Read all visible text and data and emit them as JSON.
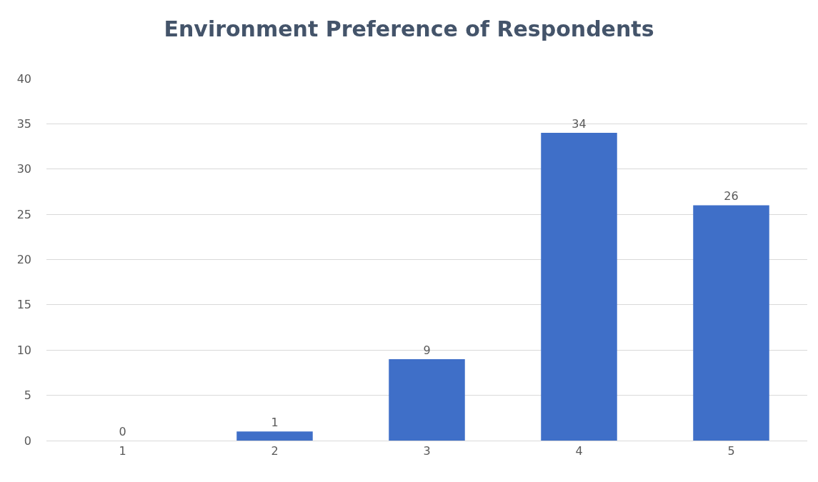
{
  "chart_data": {
    "type": "bar",
    "title": "Environment Preference of Respondents",
    "categories": [
      "1",
      "2",
      "3",
      "4",
      "5"
    ],
    "values": [
      0,
      1,
      9,
      34,
      26
    ],
    "color": "#3f6fc8",
    "ylim": [
      0,
      40
    ],
    "yticks": [
      0,
      5,
      10,
      15,
      20,
      25,
      30,
      35,
      40
    ],
    "grid": "y",
    "data_labels": true,
    "legend": false
  }
}
